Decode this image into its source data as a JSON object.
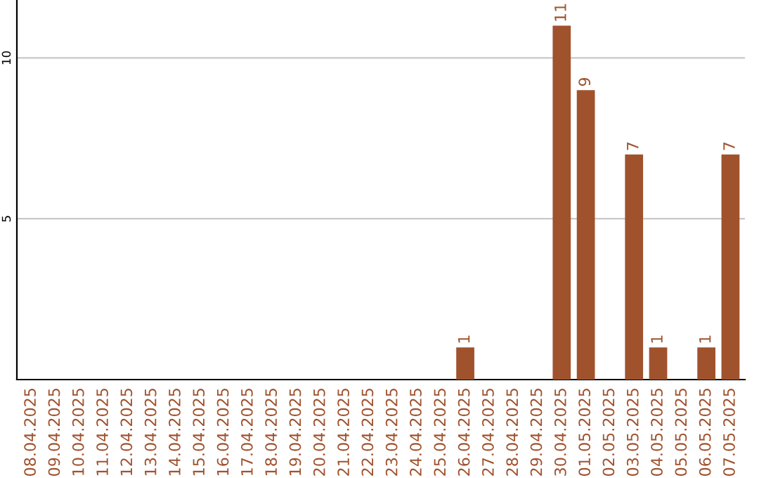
{
  "chart_data": {
    "type": "bar",
    "categories": [
      "08.04.2025",
      "09.04.2025",
      "10.04.2025",
      "11.04.2025",
      "12.04.2025",
      "13.04.2025",
      "14.04.2025",
      "15.04.2025",
      "16.04.2025",
      "17.04.2025",
      "18.04.2025",
      "19.04.2025",
      "20.04.2025",
      "21.04.2025",
      "22.04.2025",
      "23.04.2025",
      "24.04.2025",
      "25.04.2025",
      "26.04.2025",
      "27.04.2025",
      "28.04.2025",
      "29.04.2025",
      "30.04.2025",
      "01.05.2025",
      "02.05.2025",
      "03.05.2025",
      "04.05.2025",
      "05.05.2025",
      "06.05.2025",
      "07.05.2025"
    ],
    "values": [
      0,
      0,
      0,
      0,
      0,
      0,
      0,
      0,
      0,
      0,
      0,
      0,
      0,
      0,
      0,
      0,
      0,
      0,
      1,
      0,
      0,
      0,
      11,
      9,
      0,
      7,
      1,
      0,
      1,
      7
    ],
    "value_labels": [
      null,
      null,
      null,
      null,
      null,
      null,
      null,
      null,
      null,
      null,
      null,
      null,
      null,
      null,
      null,
      null,
      null,
      null,
      "1",
      null,
      null,
      null,
      "11",
      "9",
      null,
      "7",
      "1",
      null,
      "1",
      "7"
    ],
    "color": "#a0522d",
    "ylim": [
      0,
      11.8
    ],
    "yticks": [
      5,
      10
    ],
    "grid": "y"
  }
}
